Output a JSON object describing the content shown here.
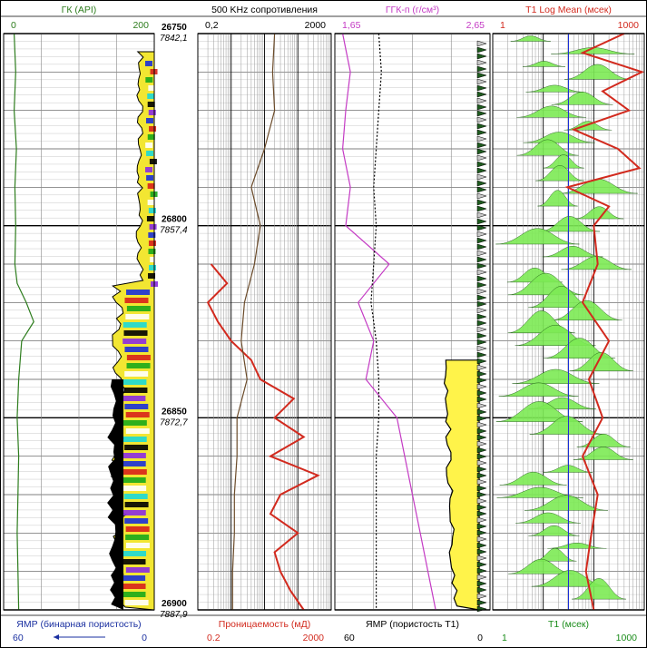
{
  "chart_data": {
    "type": "line",
    "title": "",
    "depth": {
      "ticks": [
        {
          "md": "26750",
          "tvd": "7842,1",
          "f": 0.0
        },
        {
          "md": "26800",
          "tvd": "7857,4",
          "f": 0.3333
        },
        {
          "md": "26850",
          "tvd": "7872,7",
          "f": 0.6667
        },
        {
          "md": "26900",
          "tvd": "7887,9",
          "f": 1.0
        }
      ],
      "range": [
        26750,
        26900
      ]
    },
    "tracks": [
      {
        "header": "ГК (API)",
        "header_color": "#2e7d1e",
        "min": "0",
        "max": "200",
        "scale_color": "#2e7d1e",
        "footer": "ЯМР (бинарная пористость)",
        "footer_color": "#1a2fa0",
        "footer_min": "60",
        "footer_max": "0",
        "footer_arrow": true
      },
      {
        "header": "500 KHz сопротивления",
        "header_color": "#000000",
        "min": "0,2",
        "max": "2000",
        "scale_color": "#000000",
        "footer": "Проницаемость (мД)",
        "footer_color": "#d22a1e",
        "footer_min": "0.2",
        "footer_max": "2000"
      },
      {
        "header": "ГГК-п (г/см³)",
        "header_color": "#c43ac4",
        "min": "1,65",
        "max": "2,65",
        "scale_color": "#c43ac4",
        "footer": "ЯМР  (пористость Т1)",
        "footer_color": "#000000",
        "footer_min": "60",
        "footer_max": "0"
      },
      {
        "header": "T1 Log Mean (мсек)",
        "header_color": "#d22a1e",
        "min": "1",
        "max": "1000",
        "scale_color": "#d22a1e",
        "footer": "T1 (мсек)",
        "footer_color": "#1a8c1a",
        "footer_min": "1",
        "footer_max": "1000"
      }
    ],
    "series": [
      {
        "name": "ГК",
        "track": 0,
        "color": "#2e7d1e",
        "scale": "linear",
        "domain": [
          0,
          200
        ],
        "depth": [
          26750,
          26760,
          26770,
          26780,
          26790,
          26800,
          26810,
          26815,
          26820,
          26825,
          26830,
          26840,
          26850,
          26860,
          26870,
          26880,
          26890,
          26900
        ],
        "values": [
          14,
          16,
          14,
          17,
          15,
          16,
          15,
          18,
          30,
          40,
          24,
          20,
          18,
          20,
          19,
          18,
          19,
          20
        ]
      },
      {
        "name": "Проницаемость",
        "track": 1,
        "color": "#d22a1e",
        "scale": "log",
        "domain": [
          0.2,
          2000
        ],
        "depth": [
          26810,
          26815,
          26820,
          26825,
          26830,
          26835,
          26840,
          26845,
          26850,
          26855,
          26860,
          26865,
          26870,
          26875,
          26880,
          26885,
          26890,
          26895,
          26900
        ],
        "values": [
          0.5,
          1.5,
          0.4,
          0.8,
          2,
          8,
          15,
          150,
          40,
          300,
          30,
          800,
          60,
          30,
          200,
          40,
          60,
          120,
          300
        ]
      },
      {
        "name": "500 KHz сопротивления",
        "track": 1,
        "color": "#6b4b2a",
        "scale": "log",
        "domain": [
          0.2,
          2000
        ],
        "depth": [
          26750,
          26760,
          26770,
          26780,
          26790,
          26800,
          26810,
          26820,
          26830,
          26840,
          26850,
          26860,
          26870,
          26880,
          26890,
          26900
        ],
        "values": [
          40,
          35,
          40,
          20,
          8,
          15,
          10,
          5,
          4,
          6,
          3,
          3,
          2.5,
          2.5,
          2.2,
          2.2
        ]
      },
      {
        "name": "ГГК-п",
        "track": 2,
        "color": "#c43ac4",
        "scale": "linear",
        "domain": [
          1.65,
          2.65
        ],
        "depth": [
          26750,
          26760,
          26770,
          26780,
          26790,
          26800,
          26810,
          26820,
          26830,
          26840,
          26850,
          26860,
          26870,
          26880,
          26890,
          26900
        ],
        "values": [
          1.7,
          1.75,
          1.72,
          1.7,
          1.75,
          1.72,
          2.0,
          1.8,
          1.9,
          1.85,
          2.05,
          2.1,
          2.15,
          2.2,
          2.25,
          2.3
        ]
      },
      {
        "name": "ЯМР (пористость Т1)",
        "track": 2,
        "color": "#000000",
        "scale": "linear",
        "domain": [
          60,
          0
        ],
        "dashed": true,
        "depth": [
          26750,
          26760,
          26770,
          26780,
          26790,
          26800,
          26810,
          26820,
          26830,
          26840,
          26850,
          26860,
          26870,
          26880,
          26890,
          26900
        ],
        "values": [
          43,
          42,
          43,
          44,
          45,
          44,
          45,
          46,
          44,
          43,
          43,
          44,
          44,
          44,
          44,
          44
        ]
      },
      {
        "name": "T1 Log Mean",
        "track": 3,
        "color": "#d22a1e",
        "scale": "log",
        "domain": [
          1,
          1000
        ],
        "depth": [
          26750,
          26755,
          26760,
          26765,
          26770,
          26775,
          26780,
          26785,
          26790,
          26795,
          26800,
          26810,
          26820,
          26830,
          26840,
          26850,
          26860,
          26870,
          26880,
          26890,
          26900
        ],
        "values": [
          400,
          60,
          900,
          150,
          500,
          40,
          300,
          800,
          30,
          200,
          100,
          120,
          60,
          200,
          80,
          150,
          60,
          120,
          90,
          70,
          100
        ]
      }
    ],
    "grid": true
  }
}
